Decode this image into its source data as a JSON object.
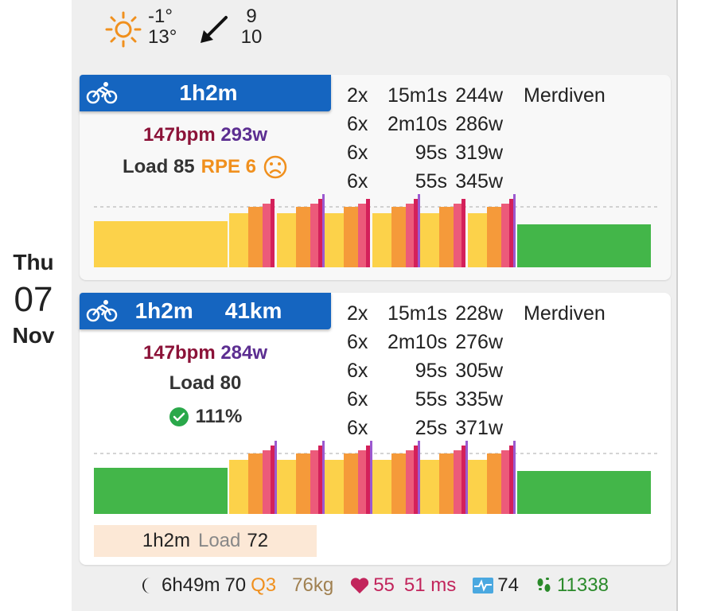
{
  "day": {
    "weekday": "Thu",
    "date": "07",
    "month": "Nov"
  },
  "weather": {
    "temp_low": "-1°",
    "temp_high": "13°",
    "wind_top": "9",
    "wind_bottom": "10",
    "icon": "sun-icon",
    "wind_icon": "arrow-down-left-icon"
  },
  "activities": [
    {
      "sport_icon": "bike-icon",
      "duration": "1h2m",
      "distance": "",
      "bpm": "147bpm",
      "watts": "293w",
      "load": "Load 85",
      "rpe": "RPE 6",
      "mood_icon": "sad-face-icon",
      "place": "Merdiven",
      "intervals": [
        {
          "count": "2x",
          "duration": "15m1s",
          "power": "244w"
        },
        {
          "count": "6x",
          "duration": "2m10s",
          "power": "286w"
        },
        {
          "count": "6x",
          "duration": "95s",
          "power": "319w"
        },
        {
          "count": "6x",
          "duration": "55s",
          "power": "345w"
        }
      ]
    },
    {
      "sport_icon": "bike-icon",
      "duration": "1h2m",
      "distance": "41km",
      "bpm": "147bpm",
      "watts": "284w",
      "load": "Load 80",
      "compliance": "111%",
      "compliance_icon": "check-circle-icon",
      "place": "Merdiven",
      "intervals": [
        {
          "count": "2x",
          "duration": "15m1s",
          "power": "228w"
        },
        {
          "count": "6x",
          "duration": "2m10s",
          "power": "276w"
        },
        {
          "count": "6x",
          "duration": "95s",
          "power": "305w"
        },
        {
          "count": "6x",
          "duration": "55s",
          "power": "335w"
        },
        {
          "count": "6x",
          "duration": "25s",
          "power": "371w"
        }
      ],
      "planned": {
        "duration": "1h2m",
        "load_label": "Load",
        "load_value": "72"
      }
    }
  ],
  "wellness": {
    "sleep": "6h49m",
    "sleep_score": "70",
    "sleep_quality": "Q3",
    "weight": "76kg",
    "resting_hr": "55",
    "hrv": "51 ms",
    "readiness": "74",
    "steps": "11338"
  },
  "colors": {
    "header": "#1565c0",
    "endurance": "#43b649",
    "tempo": "#fcd24a",
    "threshold": "#f59a3a",
    "vo2": "#ec5a7a",
    "anaerobic": "#d4205a",
    "neuro": "#9b59d0"
  }
}
